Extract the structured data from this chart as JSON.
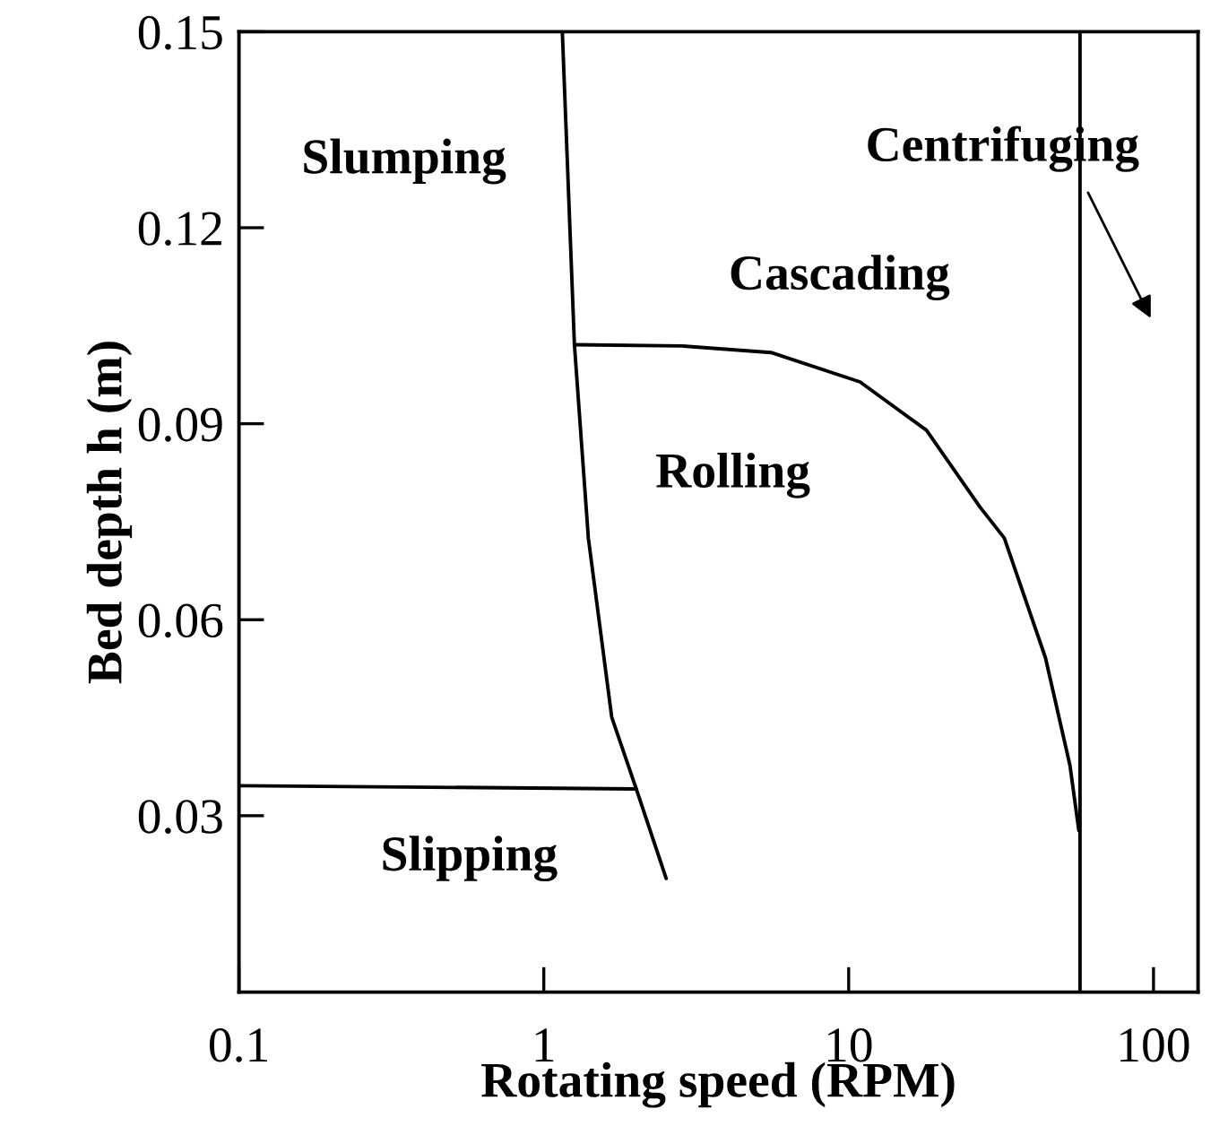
{
  "chart_data": {
    "type": "line",
    "xlabel": "Rotating speed (RPM)",
    "ylabel": "Bed depth h (m)",
    "log": "x",
    "xlim": [
      0.1,
      140
    ],
    "xticks": [
      0.1,
      1,
      10,
      100
    ],
    "ylim": [
      0.003,
      0.15
    ],
    "yticks": [
      0.03,
      0.06,
      0.09,
      0.12,
      0.15
    ],
    "grid": false,
    "marker": "none",
    "line_style": "solid",
    "series": [
      {
        "color": "#000000",
        "x": [
          1.15,
          1.26,
          1.4,
          1.67,
          2.01,
          2.52
        ],
        "values": [
          0.15,
          0.1021,
          0.0725,
          0.0451,
          0.0341,
          0.0204
        ]
      },
      {
        "color": "#000000",
        "x": [
          0.1,
          2.01
        ],
        "values": [
          0.0346,
          0.0341
        ]
      },
      {
        "color": "#000000",
        "x": [
          1.26,
          2.83,
          5.56,
          10.9,
          18.0,
          27.0,
          32.4,
          44.2,
          53.2,
          56.9
        ],
        "values": [
          0.1021,
          0.1019,
          0.1009,
          0.0964,
          0.089,
          0.0772,
          0.0725,
          0.0542,
          0.0377,
          0.0277
        ]
      },
      {
        "color": "#000000",
        "x": [
          57.4,
          57.4
        ],
        "values": [
          0.003,
          0.15
        ]
      }
    ],
    "annotations": [
      "Slumping",
      "Cascading",
      "Centrifuging",
      "Rolling",
      "Slipping"
    ]
  }
}
